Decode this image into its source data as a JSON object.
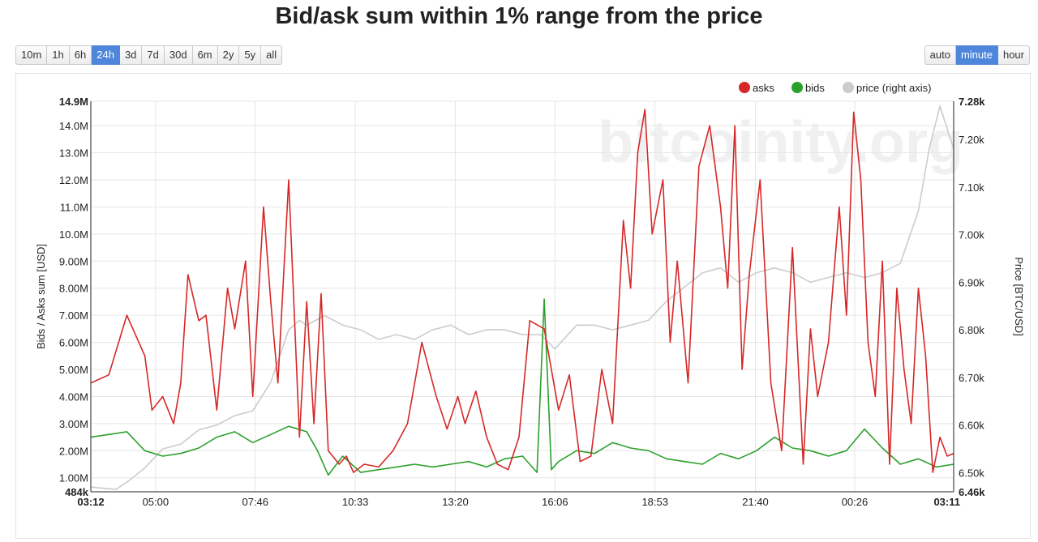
{
  "page": {
    "title": "Bid/ask sum within 1% range from the price"
  },
  "range_buttons": [
    {
      "label": "10m",
      "active": false
    },
    {
      "label": "1h",
      "active": false
    },
    {
      "label": "6h",
      "active": false
    },
    {
      "label": "24h",
      "active": true
    },
    {
      "label": "3d",
      "active": false
    },
    {
      "label": "7d",
      "active": false
    },
    {
      "label": "30d",
      "active": false
    },
    {
      "label": "6m",
      "active": false
    },
    {
      "label": "2y",
      "active": false
    },
    {
      "label": "5y",
      "active": false
    },
    {
      "label": "all",
      "active": false
    }
  ],
  "resolution_buttons": [
    {
      "label": "auto",
      "active": false
    },
    {
      "label": "minute",
      "active": true
    },
    {
      "label": "hour",
      "active": false
    }
  ],
  "watermark": "bitcoinity.org",
  "chart_data": {
    "type": "line",
    "title": "Bid/ask sum within 1% range from the price",
    "ylabel": "Bids / Asks sum [USD]",
    "y2label": "Price [BTC/USD]",
    "ylim": [
      484000,
      14900000
    ],
    "y2lim": [
      6460,
      7280
    ],
    "y_ticks": [
      {
        "value": 484000,
        "label": "484k",
        "bold": true
      },
      {
        "value": 1000000,
        "label": "1.00M"
      },
      {
        "value": 2000000,
        "label": "2.00M"
      },
      {
        "value": 3000000,
        "label": "3.00M"
      },
      {
        "value": 4000000,
        "label": "4.00M"
      },
      {
        "value": 5000000,
        "label": "5.00M"
      },
      {
        "value": 6000000,
        "label": "6.00M"
      },
      {
        "value": 7000000,
        "label": "7.00M"
      },
      {
        "value": 8000000,
        "label": "8.00M"
      },
      {
        "value": 9000000,
        "label": "9.00M"
      },
      {
        "value": 10000000,
        "label": "10.0M"
      },
      {
        "value": 11000000,
        "label": "11.0M"
      },
      {
        "value": 12000000,
        "label": "12.0M"
      },
      {
        "value": 13000000,
        "label": "13.0M"
      },
      {
        "value": 14000000,
        "label": "14.0M"
      },
      {
        "value": 14900000,
        "label": "14.9M",
        "bold": true
      }
    ],
    "y2_ticks": [
      {
        "value": 6460,
        "label": "6.46k",
        "bold": true
      },
      {
        "value": 6500,
        "label": "6.50k"
      },
      {
        "value": 6600,
        "label": "6.60k"
      },
      {
        "value": 6700,
        "label": "6.70k"
      },
      {
        "value": 6800,
        "label": "6.80k"
      },
      {
        "value": 6900,
        "label": "6.90k"
      },
      {
        "value": 7000,
        "label": "7.00k"
      },
      {
        "value": 7100,
        "label": "7.10k"
      },
      {
        "value": 7200,
        "label": "7.20k"
      },
      {
        "value": 7280,
        "label": "7.28k",
        "bold": true
      }
    ],
    "x_ticks": [
      {
        "value": 0,
        "label": "03:12",
        "bold": true
      },
      {
        "value": 1.8,
        "label": "05:00"
      },
      {
        "value": 4.57,
        "label": "07:46"
      },
      {
        "value": 7.35,
        "label": "10:33"
      },
      {
        "value": 10.13,
        "label": "13:20"
      },
      {
        "value": 12.9,
        "label": "16:06"
      },
      {
        "value": 15.68,
        "label": "18:53"
      },
      {
        "value": 18.47,
        "label": "21:40"
      },
      {
        "value": 21.23,
        "label": "00:26"
      },
      {
        "value": 23.98,
        "label": "03:11",
        "bold": true
      }
    ],
    "x_range": [
      0,
      23.98
    ],
    "legend_position": "top-right",
    "series": [
      {
        "name": "asks",
        "color": "#d62728",
        "axis": "left",
        "x": [
          0,
          0.5,
          1,
          1.5,
          1.7,
          2,
          2.3,
          2.5,
          2.7,
          3,
          3.2,
          3.5,
          3.8,
          4,
          4.3,
          4.5,
          4.8,
          5,
          5.2,
          5.5,
          5.8,
          6,
          6.2,
          6.4,
          6.6,
          6.9,
          7.1,
          7.3,
          7.6,
          8,
          8.4,
          8.8,
          9.2,
          9.6,
          9.9,
          10.2,
          10.4,
          10.7,
          11,
          11.3,
          11.6,
          11.9,
          12.2,
          12.6,
          13,
          13.3,
          13.6,
          13.9,
          14.2,
          14.5,
          14.8,
          15,
          15.2,
          15.4,
          15.6,
          15.9,
          16.1,
          16.3,
          16.6,
          16.9,
          17.2,
          17.5,
          17.7,
          17.9,
          18.1,
          18.3,
          18.6,
          18.9,
          19.2,
          19.5,
          19.8,
          20,
          20.2,
          20.5,
          20.8,
          21,
          21.2,
          21.4,
          21.6,
          21.8,
          22,
          22.2,
          22.4,
          22.6,
          22.8,
          23,
          23.2,
          23.4,
          23.6,
          23.8,
          23.98
        ],
        "y": [
          4500000,
          4800000,
          7000000,
          5500000,
          3500000,
          4000000,
          3000000,
          4500000,
          8500000,
          6800000,
          7000000,
          3500000,
          8000000,
          6500000,
          9000000,
          4000000,
          11000000,
          7500000,
          4500000,
          12000000,
          2500000,
          7500000,
          3000000,
          7800000,
          2000000,
          1500000,
          1800000,
          1200000,
          1500000,
          1400000,
          2000000,
          3000000,
          6000000,
          4000000,
          2800000,
          4000000,
          3000000,
          4200000,
          2500000,
          1500000,
          1300000,
          2500000,
          6800000,
          6500000,
          3500000,
          4800000,
          1600000,
          1800000,
          5000000,
          3000000,
          10500000,
          8000000,
          13000000,
          14600000,
          10000000,
          12000000,
          6000000,
          9000000,
          4500000,
          12500000,
          14000000,
          11000000,
          8000000,
          14000000,
          5000000,
          8500000,
          12000000,
          4500000,
          2000000,
          9500000,
          1500000,
          6500000,
          4000000,
          6000000,
          11000000,
          7000000,
          14500000,
          12000000,
          6000000,
          4000000,
          9000000,
          1500000,
          8000000,
          5000000,
          3000000,
          8000000,
          5500000,
          1200000,
          2500000,
          1800000,
          1900000
        ]
      },
      {
        "name": "bids",
        "color": "#2ca02c",
        "axis": "left",
        "x": [
          0,
          0.5,
          1,
          1.5,
          2,
          2.5,
          3,
          3.5,
          4,
          4.5,
          5,
          5.5,
          6,
          6.3,
          6.6,
          7,
          7.5,
          8,
          8.5,
          9,
          9.5,
          10,
          10.5,
          11,
          11.5,
          12,
          12.4,
          12.6,
          12.8,
          13,
          13.5,
          14,
          14.5,
          15,
          15.5,
          16,
          16.5,
          17,
          17.5,
          18,
          18.5,
          19,
          19.5,
          20,
          20.5,
          21,
          21.5,
          22,
          22.5,
          23,
          23.5,
          23.98
        ],
        "y": [
          2500000,
          2600000,
          2700000,
          2000000,
          1800000,
          1900000,
          2100000,
          2500000,
          2700000,
          2300000,
          2600000,
          2900000,
          2700000,
          2000000,
          1100000,
          1800000,
          1200000,
          1300000,
          1400000,
          1500000,
          1400000,
          1500000,
          1600000,
          1400000,
          1700000,
          1800000,
          1200000,
          7600000,
          1300000,
          1600000,
          2000000,
          1900000,
          2300000,
          2100000,
          2000000,
          1700000,
          1600000,
          1500000,
          1900000,
          1700000,
          2000000,
          2500000,
          2100000,
          2000000,
          1800000,
          2000000,
          2800000,
          2100000,
          1500000,
          1700000,
          1400000,
          1500000
        ]
      },
      {
        "name": "price (right axis)",
        "color": "#cccccc",
        "axis": "right",
        "x": [
          0,
          0.7,
          1,
          1.5,
          2,
          2.5,
          3,
          3.5,
          4,
          4.5,
          5,
          5.5,
          5.8,
          6,
          6.5,
          7,
          7.5,
          8,
          8.5,
          9,
          9.5,
          10,
          10.5,
          11,
          11.5,
          12,
          12.5,
          12.9,
          13.5,
          14,
          14.5,
          15,
          15.5,
          16,
          16.5,
          17,
          17.5,
          18,
          18.5,
          19,
          19.5,
          20,
          20.5,
          21,
          21.5,
          22,
          22.5,
          23,
          23.3,
          23.6,
          23.98
        ],
        "y": [
          6470,
          6465,
          6480,
          6510,
          6550,
          6560,
          6590,
          6600,
          6620,
          6630,
          6690,
          6800,
          6820,
          6810,
          6830,
          6810,
          6800,
          6780,
          6790,
          6780,
          6800,
          6810,
          6790,
          6800,
          6800,
          6790,
          6790,
          6760,
          6810,
          6810,
          6800,
          6810,
          6820,
          6860,
          6890,
          6920,
          6930,
          6900,
          6920,
          6930,
          6920,
          6900,
          6910,
          6920,
          6910,
          6920,
          6940,
          7050,
          7180,
          7270,
          7180
        ]
      }
    ]
  }
}
